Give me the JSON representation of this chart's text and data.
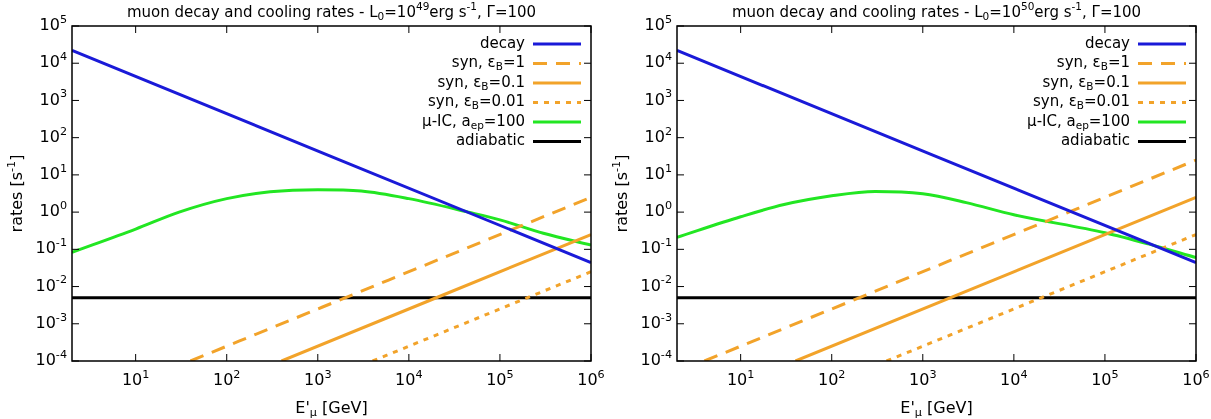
{
  "chart_data": [
    {
      "type": "line",
      "title": "muon decay and cooling rates - L$_{0}$=10$^{49}$erg s$^{-1}$, Γ=100",
      "xlabel": "E'$_{μ}$ [GeV]",
      "ylabel": "rates [s$^{-1}$]",
      "log": "xy",
      "grid": false,
      "legend": "top right",
      "marker": "none",
      "xlim": [
        2,
        1000000
      ],
      "ylim": [
        0.0001,
        100000
      ],
      "xticks": [
        {
          "value": 10,
          "label": "10$^{1}$"
        },
        {
          "value": 100,
          "label": "10$^{2}$"
        },
        {
          "value": 1000,
          "label": "10$^{3}$"
        },
        {
          "value": 10000,
          "label": "10$^{4}$"
        },
        {
          "value": 100000,
          "label": "10$^{5}$"
        },
        {
          "value": 1000000,
          "label": "10$^{6}$"
        }
      ],
      "yticks": [
        {
          "value": 0.0001,
          "label": "10$^{-4}$"
        },
        {
          "value": 0.001,
          "label": "10$^{-3}$"
        },
        {
          "value": 0.01,
          "label": "10$^{-2}$"
        },
        {
          "value": 0.1,
          "label": "10$^{-1}$"
        },
        {
          "value": 1,
          "label": "10$^{0}$"
        },
        {
          "value": 10,
          "label": "10$^{1}$"
        },
        {
          "value": 100,
          "label": "10$^{2}$"
        },
        {
          "value": 1000,
          "label": "10$^{3}$"
        },
        {
          "value": 10000,
          "label": "10$^{4}$"
        },
        {
          "value": 100000,
          "label": "10$^{5}$"
        }
      ],
      "series": [
        {
          "name": "decay",
          "color": "#1a1ad8",
          "line_style": "solid",
          "x": [
            2,
            1000000
          ],
          "values": [
            22000,
            0.044
          ]
        },
        {
          "name": "syn, ε$_{B}$=1",
          "color": "#f2a32a",
          "line_style": "dashed",
          "x": [
            40,
            1000000
          ],
          "values": [
            0.0001,
            2.5
          ]
        },
        {
          "name": "syn, ε$_{B}$=0.1",
          "color": "#f2a32a",
          "line_style": "solid",
          "x": [
            400,
            1000000
          ],
          "values": [
            0.0001,
            0.25
          ]
        },
        {
          "name": "syn, ε$_{B}$=0.01",
          "color": "#f2a32a",
          "line_style": "dotted",
          "x": [
            4000,
            1000000
          ],
          "values": [
            0.0001,
            0.025
          ]
        },
        {
          "name": "μ-IC, a$_{ep}$=100",
          "color": "#22e622",
          "line_style": "solid",
          "x": [
            2,
            10,
            30,
            100,
            300,
            1000,
            3000,
            10000,
            45000,
            100000,
            300000,
            1000000
          ],
          "values": [
            0.083,
            0.35,
            1.0,
            2.3,
            3.5,
            4.0,
            3.7,
            2.3,
            1.0,
            0.62,
            0.27,
            0.13
          ]
        },
        {
          "name": "adiabatic",
          "color": "#000000",
          "line_style": "solid",
          "x": [
            2,
            1000000
          ],
          "values": [
            0.005,
            0.005
          ]
        }
      ]
    },
    {
      "type": "line",
      "title": "muon decay and cooling rates - L$_{0}$=10$^{50}$erg s$^{-1}$, Γ=100",
      "xlabel": "E'$_{μ}$ [GeV]",
      "ylabel": "rates [s$^{-1}$]",
      "log": "xy",
      "grid": false,
      "legend": "top right",
      "marker": "none",
      "xlim": [
        2,
        1000000
      ],
      "ylim": [
        0.0001,
        100000
      ],
      "xticks": [
        {
          "value": 10,
          "label": "10$^{1}$"
        },
        {
          "value": 100,
          "label": "10$^{2}$"
        },
        {
          "value": 1000,
          "label": "10$^{3}$"
        },
        {
          "value": 10000,
          "label": "10$^{4}$"
        },
        {
          "value": 100000,
          "label": "10$^{5}$"
        },
        {
          "value": 1000000,
          "label": "10$^{6}$"
        }
      ],
      "yticks": [
        {
          "value": 0.0001,
          "label": "10$^{-4}$"
        },
        {
          "value": 0.001,
          "label": "10$^{-3}$"
        },
        {
          "value": 0.01,
          "label": "10$^{-2}$"
        },
        {
          "value": 0.1,
          "label": "10$^{-1}$"
        },
        {
          "value": 1,
          "label": "10$^{0}$"
        },
        {
          "value": 10,
          "label": "10$^{1}$"
        },
        {
          "value": 100,
          "label": "10$^{2}$"
        },
        {
          "value": 1000,
          "label": "10$^{3}$"
        },
        {
          "value": 10000,
          "label": "10$^{4}$"
        },
        {
          "value": 100000,
          "label": "10$^{5}$"
        }
      ],
      "series": [
        {
          "name": "decay",
          "color": "#1a1ad8",
          "line_style": "solid",
          "x": [
            2,
            1000000
          ],
          "values": [
            22000,
            0.044
          ]
        },
        {
          "name": "syn, ε$_{B}$=1",
          "color": "#f2a32a",
          "line_style": "dashed",
          "x": [
            4,
            1000000
          ],
          "values": [
            0.0001,
            25
          ]
        },
        {
          "name": "syn, ε$_{B}$=0.1",
          "color": "#f2a32a",
          "line_style": "solid",
          "x": [
            40,
            1000000
          ],
          "values": [
            0.0001,
            2.5
          ]
        },
        {
          "name": "syn, ε$_{B}$=0.01",
          "color": "#f2a32a",
          "line_style": "dotted",
          "x": [
            400,
            1000000
          ],
          "values": [
            0.0001,
            0.25
          ]
        },
        {
          "name": "μ-IC, a$_{ep}$=100",
          "color": "#22e622",
          "line_style": "solid",
          "x": [
            2,
            10,
            30,
            100,
            300,
            1000,
            3000,
            10000,
            100000,
            300000,
            1000000
          ],
          "values": [
            0.21,
            0.75,
            1.6,
            2.75,
            3.6,
            3.1,
            1.8,
            0.85,
            0.28,
            0.14,
            0.06
          ]
        },
        {
          "name": "adiabatic",
          "color": "#000000",
          "line_style": "solid",
          "x": [
            2,
            1000000
          ],
          "values": [
            0.005,
            0.005
          ]
        }
      ]
    }
  ]
}
